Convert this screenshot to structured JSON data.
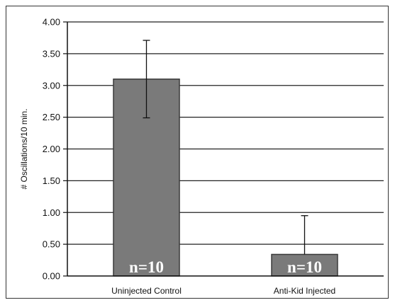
{
  "chart_data": {
    "type": "bar",
    "title": "",
    "xlabel": "",
    "ylabel": "# Oscillations/10 min.",
    "ylim": [
      0,
      4
    ],
    "ytick_step": 0.5,
    "grid": true,
    "categories": [
      "Uninjected Control",
      "Anti-Kid Injected"
    ],
    "values": [
      3.1,
      0.34
    ],
    "error_upper": [
      0.61,
      0.61
    ],
    "error_lower": [
      0.61,
      0.0
    ],
    "bar_labels": [
      "n=10",
      "n=10"
    ],
    "colors": {
      "bar": "#7a7a7a",
      "bar_edge": "#3a3a3a",
      "grid": "#222222",
      "label": "#ffffff"
    }
  }
}
